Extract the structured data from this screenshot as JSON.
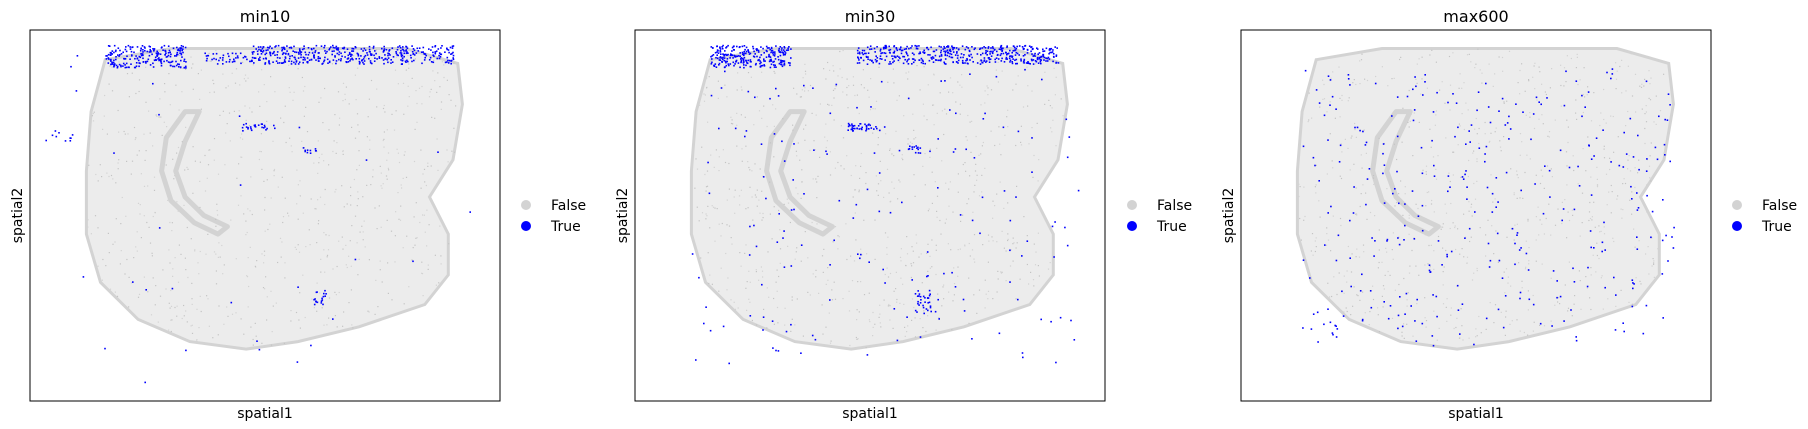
{
  "chart_data": [
    {
      "type": "scatter",
      "title": "min10",
      "xlabel": "spatial1",
      "ylabel": "spatial2",
      "legend": [
        {
          "label": "False",
          "color": "#d3d3d3"
        },
        {
          "label": "True",
          "color": "#0000ff"
        }
      ],
      "legend_position": "right",
      "grid": false,
      "ticks": false,
      "true_regions": [
        {
          "x": [
            0.16,
            0.33
          ],
          "y": [
            0.04,
            0.1
          ],
          "count": 220
        },
        {
          "x": [
            0.47,
            0.9
          ],
          "y": [
            0.04,
            0.09
          ],
          "count": 420
        },
        {
          "x": [
            0.37,
            0.47
          ],
          "y": [
            0.06,
            0.09
          ],
          "count": 40
        },
        {
          "x": [
            0.45,
            0.52
          ],
          "y": [
            0.25,
            0.27
          ],
          "count": 25
        },
        {
          "x": [
            0.58,
            0.61
          ],
          "y": [
            0.31,
            0.33
          ],
          "count": 10
        },
        {
          "x": [
            0.6,
            0.63
          ],
          "y": [
            0.7,
            0.74
          ],
          "count": 18
        },
        {
          "x": [
            0.03,
            0.09
          ],
          "y": [
            0.27,
            0.3
          ],
          "count": 10
        },
        {
          "x": [
            0.02,
            0.98
          ],
          "y": [
            0.04,
            0.95
          ],
          "count": 30
        }
      ]
    },
    {
      "type": "scatter",
      "title": "min30",
      "xlabel": "spatial1",
      "ylabel": "spatial2",
      "legend": [
        {
          "label": "False",
          "color": "#d3d3d3"
        },
        {
          "label": "True",
          "color": "#0000ff"
        }
      ],
      "legend_position": "right",
      "grid": false,
      "ticks": false,
      "true_regions": [
        {
          "x": [
            0.16,
            0.33
          ],
          "y": [
            0.04,
            0.1
          ],
          "count": 260
        },
        {
          "x": [
            0.47,
            0.9
          ],
          "y": [
            0.04,
            0.09
          ],
          "count": 450
        },
        {
          "x": [
            0.45,
            0.52
          ],
          "y": [
            0.25,
            0.27
          ],
          "count": 40
        },
        {
          "x": [
            0.58,
            0.61
          ],
          "y": [
            0.31,
            0.33
          ],
          "count": 14
        },
        {
          "x": [
            0.59,
            0.63
          ],
          "y": [
            0.7,
            0.76
          ],
          "count": 30
        },
        {
          "x": [
            0.12,
            0.95
          ],
          "y": [
            0.1,
            0.9
          ],
          "count": 160
        }
      ]
    },
    {
      "type": "scatter",
      "title": "max600",
      "xlabel": "spatial1",
      "ylabel": "spatial2",
      "legend": [
        {
          "label": "False",
          "color": "#d3d3d3"
        },
        {
          "label": "True",
          "color": "#0000ff"
        }
      ],
      "legend_position": "right",
      "grid": false,
      "ticks": false,
      "true_regions": [
        {
          "x": [
            0.13,
            0.92
          ],
          "y": [
            0.1,
            0.85
          ],
          "count": 320
        }
      ]
    }
  ]
}
